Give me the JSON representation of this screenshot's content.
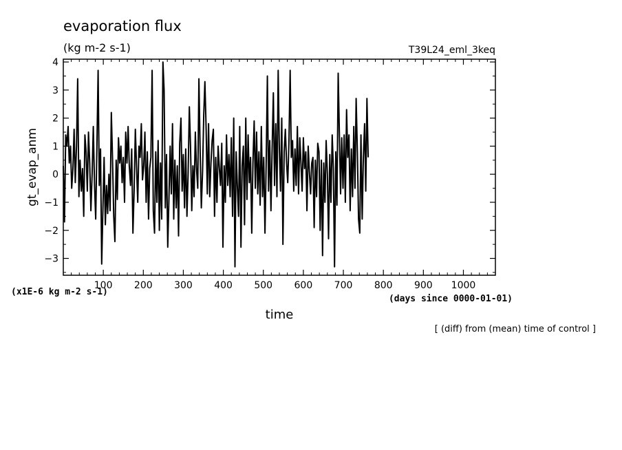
{
  "header": {
    "title": "evaporation flux",
    "units": "(kg m-2 s-1)",
    "run_name": "T39L24_eml_3keq"
  },
  "axes": {
    "ylabel": "gt_evap_anm",
    "xlabel": "time",
    "y_scale_note": "(x1E-6 kg m-2 s-1)",
    "x_units_note": "(days since 0000-01-01)"
  },
  "footer_note": "[ (diff) from (mean) time of control ]",
  "chart_data": {
    "type": "line",
    "title": "evaporation flux",
    "xlabel": "time",
    "ylabel": "gt_evap_anm",
    "xlim": [
      0,
      1080
    ],
    "ylim": [
      -3.6,
      4.1
    ],
    "x_ticks": [
      100,
      200,
      300,
      400,
      500,
      600,
      700,
      800,
      900,
      1000
    ],
    "y_ticks": [
      -3,
      -2,
      -1,
      0,
      1,
      2,
      3,
      4
    ],
    "grid": false,
    "x_step": 3,
    "x_start": 0,
    "series": [
      {
        "values": [
          0.3,
          -1.7,
          1.4,
          1.0,
          1.7,
          0.4,
          1.0,
          -0.5,
          0.2,
          1.6,
          -0.3,
          1.0,
          3.4,
          -0.8,
          0.5,
          -0.6,
          0.2,
          -1.5,
          1.4,
          0.8,
          -0.6,
          1.5,
          0.4,
          -1.3,
          0.0,
          1.7,
          -0.4,
          -1.6,
          0.9,
          3.7,
          -0.4,
          0.9,
          -3.2,
          -1.2,
          0.6,
          -1.8,
          -0.4,
          -1.4,
          0.0,
          -1.3,
          2.2,
          0.6,
          -1.5,
          -2.4,
          0.5,
          -0.9,
          1.3,
          0.4,
          1.0,
          -0.3,
          0.6,
          -1.0,
          1.5,
          0.4,
          1.7,
          0.3,
          -0.4,
          0.9,
          -2.1,
          -0.6,
          1.6,
          0.3,
          -1.0,
          1.0,
          0.6,
          1.8,
          -0.2,
          0.3,
          1.5,
          -1.0,
          0.8,
          -1.6,
          0.2,
          0.6,
          3.7,
          -1.3,
          -2.1,
          0.8,
          -1.0,
          1.2,
          -2.0,
          0.4,
          -1.6,
          4.0,
          3.0,
          -1.2,
          0.7,
          -2.6,
          -0.9,
          1.0,
          -0.7,
          1.8,
          -1.6,
          0.5,
          -1.2,
          0.3,
          -2.2,
          1.1,
          2.0,
          -0.6,
          0.7,
          -1.2,
          0.9,
          -1.5,
          0.0,
          2.4,
          1.0,
          -1.3,
          0.3,
          -0.8,
          1.5,
          0.2,
          -0.5,
          3.4,
          0.8,
          -1.2,
          0.1,
          2.1,
          3.3,
          1.6,
          -0.7,
          1.8,
          -0.8,
          0.4,
          1.2,
          1.6,
          -1.5,
          0.6,
          -1.0,
          1.0,
          0.2,
          -0.4,
          1.1,
          -2.6,
          0.3,
          -1.0,
          1.4,
          -0.4,
          0.7,
          -0.8,
          1.3,
          -1.5,
          2.0,
          -3.3,
          0.8,
          -0.4,
          -1.5,
          1.7,
          -2.6,
          0.3,
          1.0,
          -1.8,
          2.0,
          -0.9,
          1.4,
          -0.3,
          0.6,
          -2.1,
          0.4,
          1.9,
          -0.5,
          1.5,
          -0.7,
          0.8,
          -1.1,
          1.7,
          -0.8,
          0.6,
          -2.1,
          0.3,
          3.5,
          -0.6,
          1.2,
          -1.3,
          0.9,
          2.9,
          -0.4,
          1.8,
          -0.8,
          3.7,
          0.9,
          -0.6,
          2.0,
          -2.5,
          0.8,
          1.6,
          0.4,
          -0.3,
          1.2,
          3.7,
          0.6,
          1.2,
          -0.6,
          0.9,
          -0.4,
          1.7,
          -0.7,
          1.3,
          0.4,
          -0.6,
          1.3,
          0.2,
          0.8,
          -1.3,
          1.0,
          0.1,
          -0.7,
          0.4,
          0.6,
          -1.9,
          0.5,
          -0.8,
          1.1,
          0.8,
          -2.0,
          0.5,
          -2.9,
          0.4,
          -1.0,
          1.2,
          0.0,
          -2.3,
          0.7,
          -1.0,
          1.4,
          0.2,
          -3.3,
          0.8,
          -1.1,
          3.6,
          1.5,
          -0.7,
          1.3,
          -0.5,
          1.4,
          -1.0,
          2.3,
          0.6,
          1.4,
          -1.3,
          0.9,
          -0.8,
          1.7,
          -0.5,
          2.7,
          0.8,
          -1.6,
          -2.1,
          1.4,
          -1.6,
          0.6,
          1.8,
          -0.6,
          2.7,
          0.6
        ]
      }
    ]
  }
}
